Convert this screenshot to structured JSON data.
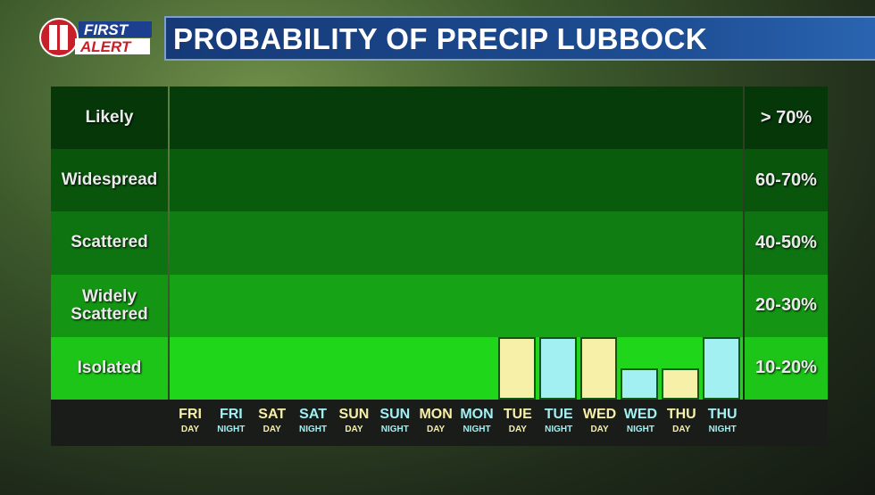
{
  "logo": {
    "number": "11",
    "line1": "FIRST",
    "line2": "ALERT"
  },
  "title": "PROBABILITY OF PRECIP LUBBOCK",
  "colors": {
    "day": "#f7f0a8",
    "night": "#a3f0f3",
    "bands": [
      "#053c09",
      "#0a5c0d",
      "#0f7d12",
      "#16a316",
      "#1fd61b"
    ]
  },
  "chart_data": {
    "type": "bar",
    "title": "PROBABILITY OF PRECIP LUBBOCK",
    "bands": [
      {
        "label": "Likely",
        "range": "> 70%"
      },
      {
        "label": "Widespread",
        "range": "60-70%"
      },
      {
        "label": "Scattered",
        "range": "40-50%"
      },
      {
        "label": "Widely Scattered",
        "range": "20-30%"
      },
      {
        "label": "Isolated",
        "range": "10-20%"
      }
    ],
    "categories": [
      {
        "day": "FRI",
        "period": "DAY"
      },
      {
        "day": "FRI",
        "period": "NIGHT"
      },
      {
        "day": "SAT",
        "period": "DAY"
      },
      {
        "day": "SAT",
        "period": "NIGHT"
      },
      {
        "day": "SUN",
        "period": "DAY"
      },
      {
        "day": "SUN",
        "period": "NIGHT"
      },
      {
        "day": "MON",
        "period": "DAY"
      },
      {
        "day": "MON",
        "period": "NIGHT"
      },
      {
        "day": "TUE",
        "period": "DAY"
      },
      {
        "day": "TUE",
        "period": "NIGHT"
      },
      {
        "day": "WED",
        "period": "DAY"
      },
      {
        "day": "WED",
        "period": "NIGHT"
      },
      {
        "day": "THU",
        "period": "DAY"
      },
      {
        "day": "THU",
        "period": "NIGHT"
      }
    ],
    "values": [
      0,
      0,
      0,
      0,
      0,
      0,
      0,
      0,
      20,
      20,
      20,
      10,
      10,
      20
    ]
  }
}
